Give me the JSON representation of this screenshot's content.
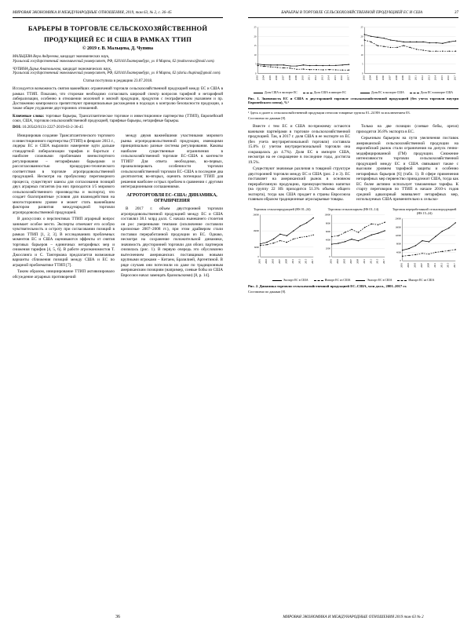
{
  "left": {
    "runhead": "МИРОВАЯ ЭКОНОМИКА И МЕЖДУНАРОДНЫЕ ОТНОШЕНИЯ, 2019, том 63, № 2, с. 36–45",
    "title_line1": "БАРЬЕРЫ В ТОРГОВЛЕ СЕЛЬСКОХОЗЯЙСТВЕННОЙ",
    "title_line2": "ПРОДУКЦИЕЙ ЕС И США В РАМКАХ ТТИП",
    "copyright": "© 2019 г.   В. Мальцева, Д. Чупина",
    "affil1_name": "МАЛЬЦЕВА Вера Андреевна,",
    "affil1_deg": "кандидат экономических наук,",
    "affil1_inst": "Уральский государственный экономический университет, РФ, 620144 Екатеринбург, ул. 8 Марта, 62 (maltsevava@mail.com).",
    "affil2_name": "ЧУПИНА Дарья Анатольевна,",
    "affil2_deg": "кандидат экономических наук,",
    "affil2_inst": "Уральский государственный экономический университет, РФ, 620144 Екатеринбург, ул. 8 Марта, 62 (daria.chupina@gmail.com).",
    "received": "Статья поступила в редакцию 23.07.2018.",
    "abstract": "Исследуется возможность снятия важнейших ограничений торговли сельскохозяйственной продукцией между ЕС и США в рамках ТТИП. Показано, что сторонам необходимо согласовать широкий спектр вопросов тарифной и нетарифной либерализации, особенно в отношении молочной и мясной продукции, продуктов с географическим указанием и пр. Достижению компромисса препятствуют принципиальные расхождения в подходах к контролю безопасности продукции, а также общее ухудшение двусторонних отношений.",
    "kw_label": "Ключевые слова:",
    "kw_text": "торговые барьеры, Трансатлантическое торговое и инвестиционное партнерство (ТТИП), Европейский союз, США, торговля сельскохозяйственной продукцией, тарифные барьеры, нетарифные барьеры.",
    "doi_label": "DOI:",
    "doi": "10.20542/0131-2227-2019-63-2-36-45",
    "body": {
      "p1": "Инициировав создание Трансатлантического торгового и инвестиционного партнерства (ТТИП) в феврале 2013 г., лидеры ЕС и США выразили намерение идти дальше стандартной либерализации тарифов и бороться с наиболее сложными проблемами внеэкспортного регулирования – нетарифными барьерами и рассогласованностью процедурно-технического соответствия в торговле агропродовольственной продукцией. Несмотря на пробуксовку переговорного процесса, существуют шансы для согласования позиций двух аграрных гигантов (на них приходится 1/5 мирового сельскохозяйственного производства и экспорта), что создает благоприятные условия для взаимодействия на многостороннем уровне и может стать важнейшим фактором развития международной торговли агропродовольственной продукцией.",
      "p2": "В дискуссиях о перспективах ТТИП аграрный вопрос занимает особое место. Эксперты отмечают его особую чувствительность и остроту при согласовании позиций в рамках ТТИП [1, 2, 3]. В исследованиях проблемных моментов ЕС и США оцениваются эффекты от снятия торговых барьеров – единичных нетарифных мер и снижения тарифов [4, 5, 6]. В работе агроэкономистов Т. Джослинга и С. Тангермана предлагается возможные варианты сближения позиций между США и ЕС по аграрной проблематике ТТИП [7].",
      "p3": "Таким образом, инициирование ТТИП активизировало обсуждение аграрных противоречий",
      "p4": "между двумя важнейшими участниками мирового рынка агропродовольственной продукции, имеющими принципиально разные системы регулирования. Каковы наиболее существенные ограничения в сельскохозяйственной торговле ЕС–США в контексте ТТИП? Для ответа необходимо, во-первых, проанализировать особенности торговли сельскохозяйственной торговли ЕС–США в последние два десятилетия; во-вторых, оценить потенциал ТТИП для решения наиболее острых проблем в сравнении с другими интеграционными соглашениями.",
      "h2": "АГРОТОРГОВЛЯ ЕС–США: ДИНАМИКА, ОГРАНИЧЕНИЯ",
      "p5": "В 2017 г. объем двусторонней торговли агропродовольственной продукцией между ЕС и США составлял 38.1 млрд долл. С начала нынешнего столетия он рос умеренными темпами (исключение составили кризисные 2007–2008 гг.), при этом драйвером стали поставки переработанной продукции из ЕС. Однако, несмотря на сохранение положительной динамики, значимость двусторонней торговли для обоих партнеров снизилась (рис. 1). В первую очередь это обусловлено вытеснением американских поставщиков новыми крупными игроками – Китаем, Бразилией, Аргентиной. В ряде случаев они потеснили их даже по традиционным американским позициям (например, соевые бобы из США Евросоюз начал замещать бразильскими) [8, p. 14].",
      "pagenum": "36"
    }
  },
  "right": {
    "runhead_title": "БАРЬЕРЫ В ТОРГОВЛЕ СЕЛЬСКОХОЗЯЙСТВЕННОЙ ПРОДУКЦИЕЙ ЕС И США",
    "runhead_page": "37",
    "fig1": {
      "left_chart": {
        "ylim": [
          0,
          25
        ],
        "yticks": [
          0,
          5,
          10,
          15,
          20,
          25
        ],
        "years": [
          "2003",
          "2004",
          "2005",
          "2006",
          "2007",
          "2008",
          "2009",
          "2010",
          "2011",
          "2012",
          "2013",
          "2014",
          "2015",
          "2016",
          "2017"
        ],
        "series_solid": [
          5.0,
          4.6,
          4.5,
          4.5,
          4.5,
          4.0,
          4.0,
          4.5,
          4.2,
          4.3,
          4.2,
          4.3,
          4.3,
          4.5,
          4.8
        ],
        "series_dash": [
          4.2,
          3.8,
          3.5,
          3.2,
          3.0,
          2.8,
          2.2,
          2.3,
          2.0,
          2.0,
          1.9,
          2.0,
          1.9,
          1.8,
          1.8
        ],
        "legend_a": "Доля США в экспорте ЕС",
        "legend_b": "Доля США в импорте ЕС"
      },
      "right_chart": {
        "ylim": [
          0,
          25
        ],
        "yticks": [
          0,
          5,
          10,
          15,
          20,
          25
        ],
        "years": [
          "2003",
          "2004",
          "2005",
          "2006",
          "2007",
          "2008",
          "2009",
          "2010",
          "2011",
          "2012",
          "2013",
          "2014",
          "2015",
          "2016",
          "2017"
        ],
        "series_solid": [
          21,
          20,
          19.5,
          19,
          18,
          17.5,
          17,
          17,
          17,
          17,
          16.5,
          16.5,
          16.2,
          17,
          17.5
        ],
        "series_dash": [
          18,
          17,
          15,
          14.5,
          14,
          14,
          15,
          14,
          13,
          12.5,
          12,
          12,
          12,
          12,
          12
        ],
        "legend_a": "Доля ЕС в экспорте США",
        "legend_b": "Доля ЕС в импорте США"
      },
      "caption": "Рис. 1. Значимость ЕС и США в двусторонней торговле сельскохозяйственной продукцией (без учета торговли внутри Европейского союза), %¹",
      "footnote": "¹ Здесь и далее к сельскохозяйственной продукции относим товарные группы 01–24 HS за исключением 03.",
      "source": "Составлено по данным [8]."
    },
    "body": {
      "p1": "Вместе с тем ЕС и США по-прежнему остаются важными партнёрами в торговле сельскохозяйственной продукцией. Так, в 2017 г. доля США в ее экспорте из ЕС (без учета внутрирегиональной торговли) составила 15.8% (с учетом внутрирегиональной торговли она сокращалась до 4.7%). Доля ЕС в импорте США, несмотря на ее сокращение в последние годы, достигла 19.5%.",
      "p2": "Существуют значимые различия в товарной структуре двусторонней торговли между ЕС и США (рис. 2 и 3). ЕС поставляет на американский рынок в основном переработанную продукцию, преимущественно напитки (на группу 22 HS приходится 51.3% объема общего экспорта), тогда как США продает в страны Евросоюза главным образом традиционные агросырьевые товары.",
      "p3": "Только на две позиции (соевые бобы, орехи) приходится 36.8% экспорта в ЕС.",
      "p4": "Серьезным барьером на пути увеличения поставок американской сельскохозяйственной продукции на европейский рынок стали ограничения на допуск генно-модифицированной (ГМ) продукции. Снижение интенсивности торговли сельскохозяйственной продукцией между ЕС и США связывают также с высоким уровнем тарифной защиты и особенно нетарифных барьеров [6] (табл. 1). В сфере применения нетарифных мер первенство принадлежит США, тогда как ЕС более активно использует таможенные тарифы. К старту переговоров по ТТИП в начале 2010-х годов средний адвалорный эквивалент нетарифных мер, используемых США применительно к сельско-"
    },
    "fig2": {
      "titles": [
        "Торговля сельхозпродукцией (HS 01–24)",
        "Торговля сельхозсырьем (HS 01–14)",
        "Торговля переработанной сельхозпродукцией (HS 15–24)"
      ],
      "charts": [
        {
          "ylim": [
            0,
            26000
          ],
          "yticks": [
            0,
            6000,
            16000,
            26000
          ],
          "years": [
            "2001",
            "2003",
            "2005",
            "2007",
            "2009",
            "2011",
            "2013",
            "2015",
            "2017"
          ],
          "solid": [
            8000,
            9000,
            11000,
            14000,
            13000,
            16000,
            19000,
            21000,
            24000
          ],
          "dash": [
            7000,
            7500,
            8500,
            10000,
            9000,
            11000,
            12000,
            12500,
            13500
          ]
        },
        {
          "ylim": [
            0,
            10000
          ],
          "yticks": [
            0,
            2000,
            4000,
            6000,
            8000,
            10000
          ],
          "years": [
            "2001",
            "2003",
            "2005",
            "2007",
            "2009",
            "2011",
            "2013",
            "2015",
            "2017"
          ],
          "solid": [
            3000,
            3200,
            3600,
            4200,
            3800,
            4500,
            5200,
            5600,
            6200
          ],
          "dash": [
            4800,
            5000,
            5800,
            6500,
            5800,
            7000,
            7800,
            7600,
            8200
          ]
        },
        {
          "ylim": [
            0,
            20000
          ],
          "yticks": [
            0,
            4000,
            8000,
            12000,
            16000,
            20000
          ],
          "years": [
            "2001",
            "2003",
            "2005",
            "2007",
            "2009",
            "2011",
            "2013",
            "2015",
            "2017"
          ],
          "solid": [
            5000,
            5800,
            7200,
            9500,
            9000,
            11500,
            14000,
            15500,
            18000
          ],
          "dash": [
            2200,
            2500,
            2900,
            3500,
            3200,
            4000,
            4400,
            4800,
            5300
          ]
        }
      ],
      "legend_a": "Экспорт ЕС в США",
      "legend_b": "Импорт ЕС из США",
      "caption": "Рис. 2. Динамика торговли сельскохозяйственной продукцией ЕС–США, млн долл., 2001–2017 гг.",
      "source": "Составлено по данным [8]."
    },
    "footline": "МИРОВАЯ ЭКОНОМИКА И МЕЖДУНАРОДНЫЕ ОТНОШЕНИЯ   2019   том 63   № 2"
  },
  "style": {
    "text_color": "#000000",
    "bg_color": "#ffffff",
    "grid_color": "#cccccc"
  }
}
